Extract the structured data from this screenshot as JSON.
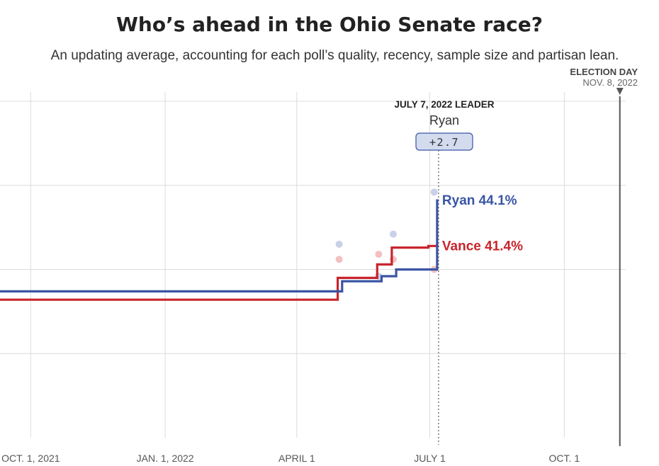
{
  "title": "Who’s ahead in the Ohio Senate race?",
  "subtitle": "An updating average, accounting for each poll’s quality, recency, sample size and partisan lean.",
  "election_day": {
    "label": "ELECTION DAY",
    "date": "NOV. 8, 2022"
  },
  "leader_box": {
    "heading": "JULY 7, 2022 LEADER",
    "name": "Ryan",
    "margin": "+2.7"
  },
  "colors": {
    "ryan": "#3a55a4",
    "vance": "#c8252c",
    "ryan_dot": "#c3cbe6",
    "vance_dot": "#f2b9bb",
    "grid": "#dcdcdc"
  },
  "chart_data": {
    "type": "line",
    "x_ticks": [
      {
        "date": "2021-10-01",
        "label": "OCT. 1, 2021"
      },
      {
        "date": "2022-01-01",
        "label": "JAN. 1, 2022"
      },
      {
        "date": "2022-04-01",
        "label": "APRIL 1"
      },
      {
        "date": "2022-07-01",
        "label": "JULY 1"
      },
      {
        "date": "2022-10-01",
        "label": "OCT. 1"
      }
    ],
    "xlim": [
      "2021-09-10",
      "2022-11-12"
    ],
    "ylim": [
      30,
      50
    ],
    "gridlines_y": [
      35,
      40,
      45,
      50
    ],
    "grid": true,
    "current_date": "2022-07-07",
    "election_date": "2022-11-08",
    "series": [
      {
        "name": "Ryan",
        "key": "ryan",
        "end_label": "Ryan 44.1%",
        "points": [
          [
            "2021-09-10",
            38.7
          ],
          [
            "2022-05-02",
            38.7
          ],
          [
            "2022-05-02",
            39.3
          ],
          [
            "2022-05-29",
            39.3
          ],
          [
            "2022-05-29",
            39.6
          ],
          [
            "2022-06-08",
            39.6
          ],
          [
            "2022-06-08",
            40.0
          ],
          [
            "2022-07-06",
            40.0
          ],
          [
            "2022-07-06",
            44.1
          ],
          [
            "2022-07-07",
            44.1
          ]
        ]
      },
      {
        "name": "Vance",
        "key": "vance",
        "end_label": "Vance 41.4%",
        "points": [
          [
            "2021-09-10",
            38.2
          ],
          [
            "2022-04-29",
            38.2
          ],
          [
            "2022-04-29",
            39.5
          ],
          [
            "2022-05-26",
            39.5
          ],
          [
            "2022-05-26",
            40.3
          ],
          [
            "2022-06-05",
            40.3
          ],
          [
            "2022-06-05",
            41.3
          ],
          [
            "2022-06-30",
            41.3
          ],
          [
            "2022-06-30",
            41.4
          ],
          [
            "2022-07-07",
            41.4
          ]
        ]
      }
    ],
    "polls": [
      {
        "series": "ryan",
        "date": "2022-04-30",
        "value": 41.5
      },
      {
        "series": "vance",
        "date": "2022-04-30",
        "value": 40.6
      },
      {
        "series": "ryan",
        "date": "2022-05-27",
        "value": 39.6
      },
      {
        "series": "vance",
        "date": "2022-05-27",
        "value": 40.9
      },
      {
        "series": "ryan",
        "date": "2022-06-06",
        "value": 42.1
      },
      {
        "series": "vance",
        "date": "2022-06-06",
        "value": 40.6
      },
      {
        "series": "ryan",
        "date": "2022-07-04",
        "value": 44.6
      },
      {
        "series": "vance",
        "date": "2022-07-04",
        "value": 40.0
      }
    ]
  }
}
